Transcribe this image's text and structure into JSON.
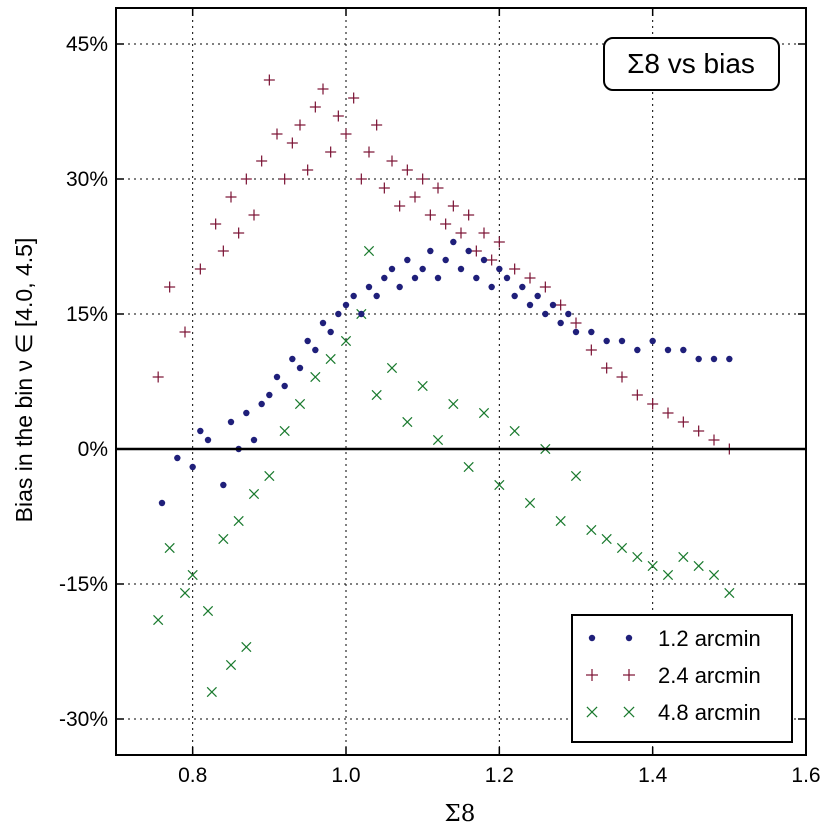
{
  "chart_data": {
    "type": "scatter",
    "title": "Σ8 vs bias",
    "xlabel": "Σ8",
    "ylabel": "Bias in the bin ν ∈ [4.0, 4.5]",
    "xlim": [
      0.7,
      1.6
    ],
    "ylim": [
      -34,
      49
    ],
    "x_ticks": [
      0.8,
      1.0,
      1.2,
      1.4,
      1.6
    ],
    "x_tick_labels": [
      "0.8",
      "1.0",
      "1.2",
      "1.4",
      "1.6"
    ],
    "y_ticks": [
      45,
      30,
      15,
      0,
      -15,
      -30
    ],
    "y_tick_labels": [
      "45%",
      "30%",
      "15%",
      "0%",
      "-15%",
      "-30%"
    ],
    "grid": true,
    "zero_line": true,
    "legend": {
      "position": "bottom-right"
    },
    "series": [
      {
        "name": "1.2 arcmin",
        "marker": "dot",
        "color": "#1f1f7a",
        "x": [
          0.76,
          0.78,
          0.8,
          0.81,
          0.82,
          0.84,
          0.85,
          0.86,
          0.87,
          0.88,
          0.89,
          0.9,
          0.91,
          0.92,
          0.93,
          0.94,
          0.95,
          0.96,
          0.97,
          0.98,
          0.99,
          1.0,
          1.01,
          1.02,
          1.03,
          1.04,
          1.05,
          1.06,
          1.07,
          1.08,
          1.09,
          1.1,
          1.11,
          1.12,
          1.13,
          1.14,
          1.15,
          1.16,
          1.17,
          1.18,
          1.19,
          1.2,
          1.21,
          1.22,
          1.23,
          1.24,
          1.25,
          1.26,
          1.27,
          1.28,
          1.29,
          1.3,
          1.32,
          1.34,
          1.36,
          1.38,
          1.4,
          1.42,
          1.44,
          1.46,
          1.48,
          1.5
        ],
        "y": [
          -6,
          -1,
          -2,
          2,
          1,
          -4,
          3,
          0,
          4,
          1,
          5,
          6,
          8,
          7,
          10,
          9,
          12,
          11,
          14,
          13,
          15,
          16,
          17,
          15,
          18,
          17,
          19,
          20,
          18,
          21,
          19,
          20,
          22,
          19,
          21,
          23,
          20,
          22,
          19,
          21,
          18,
          20,
          19,
          17,
          18,
          16,
          17,
          15,
          16,
          14,
          15,
          13,
          13,
          12,
          12,
          11,
          12,
          11,
          11,
          10,
          10,
          10
        ]
      },
      {
        "name": "2.4 arcmin",
        "marker": "plus",
        "color": "#7a1032",
        "x": [
          0.755,
          0.77,
          0.79,
          0.81,
          0.83,
          0.84,
          0.85,
          0.86,
          0.87,
          0.88,
          0.89,
          0.9,
          0.91,
          0.92,
          0.93,
          0.94,
          0.95,
          0.96,
          0.97,
          0.98,
          0.99,
          1.0,
          1.01,
          1.02,
          1.03,
          1.04,
          1.05,
          1.06,
          1.07,
          1.08,
          1.09,
          1.1,
          1.11,
          1.12,
          1.13,
          1.14,
          1.15,
          1.16,
          1.17,
          1.18,
          1.19,
          1.2,
          1.22,
          1.24,
          1.26,
          1.28,
          1.3,
          1.32,
          1.34,
          1.36,
          1.38,
          1.4,
          1.42,
          1.44,
          1.46,
          1.48,
          1.5
        ],
        "y": [
          8,
          18,
          13,
          20,
          25,
          22,
          28,
          24,
          30,
          26,
          32,
          41,
          35,
          30,
          34,
          36,
          31,
          38,
          40,
          33,
          37,
          35,
          39,
          30,
          33,
          36,
          29,
          32,
          27,
          31,
          28,
          30,
          26,
          29,
          25,
          27,
          24,
          26,
          22,
          24,
          21,
          23,
          20,
          19,
          18,
          16,
          14,
          11,
          9,
          8,
          6,
          5,
          4,
          3,
          2,
          1,
          0
        ]
      },
      {
        "name": "4.8 arcmin",
        "marker": "cross",
        "color": "#1a7a2e",
        "x": [
          0.755,
          0.77,
          0.79,
          0.8,
          0.82,
          0.825,
          0.84,
          0.85,
          0.86,
          0.87,
          0.88,
          0.9,
          0.92,
          0.94,
          0.96,
          0.98,
          1.0,
          1.02,
          1.03,
          1.04,
          1.06,
          1.08,
          1.1,
          1.12,
          1.14,
          1.16,
          1.18,
          1.2,
          1.22,
          1.24,
          1.26,
          1.28,
          1.3,
          1.32,
          1.34,
          1.36,
          1.38,
          1.4,
          1.42,
          1.44,
          1.46,
          1.48,
          1.5
        ],
        "y": [
          -19,
          -11,
          -16,
          -14,
          -18,
          -27,
          -10,
          -24,
          -8,
          -22,
          -5,
          -3,
          2,
          5,
          8,
          10,
          12,
          15,
          22,
          6,
          9,
          3,
          7,
          1,
          5,
          -2,
          4,
          -4,
          2,
          -6,
          0,
          -8,
          -3,
          -9,
          -10,
          -11,
          -12,
          -13,
          -14,
          -12,
          -13,
          -14,
          -16
        ]
      }
    ]
  }
}
